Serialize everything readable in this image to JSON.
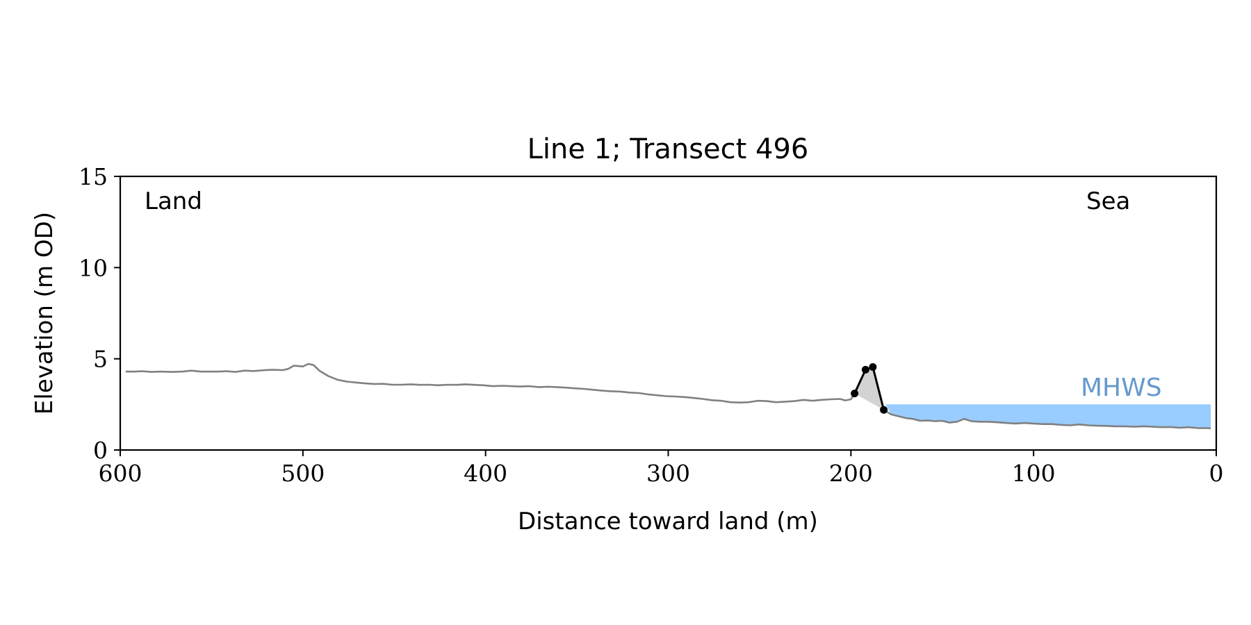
{
  "chart_data": {
    "type": "line",
    "title": "Line 1; Transect 496",
    "xlabel": "Distance toward land (m)",
    "ylabel": "Elevation (m OD)",
    "xlim": [
      600,
      0
    ],
    "ylim": [
      0,
      15
    ],
    "x_ticks": [
      600,
      500,
      400,
      300,
      200,
      100,
      0
    ],
    "y_ticks": [
      0,
      5,
      10,
      15
    ],
    "x_tick_labels": [
      "600",
      "500",
      "400",
      "300",
      "200",
      "100",
      "0"
    ],
    "y_tick_labels": [
      "0",
      "5",
      "10",
      "15"
    ],
    "grid": false,
    "annotations": {
      "left_label": "Land",
      "right_label": "Sea",
      "mhws_label": "MHWS"
    },
    "mhws": {
      "elevation": 2.5,
      "x_from": 181,
      "x_to": 3
    },
    "colors": {
      "profile": "#808080",
      "barrier": "#000000",
      "barrier_fill": "#d3d3d3",
      "mhws_fill": "#99ccff",
      "mhws_text": "#6699cc"
    },
    "series": [
      {
        "points": [
          [
            597,
            4.3
          ],
          [
            592,
            4.3
          ],
          [
            588,
            4.32
          ],
          [
            583,
            4.28
          ],
          [
            578,
            4.3
          ],
          [
            572,
            4.28
          ],
          [
            566,
            4.3
          ],
          [
            561,
            4.35
          ],
          [
            556,
            4.3
          ],
          [
            551,
            4.3
          ],
          [
            546,
            4.3
          ],
          [
            542,
            4.32
          ],
          [
            537,
            4.28
          ],
          [
            532,
            4.35
          ],
          [
            527,
            4.33
          ],
          [
            521,
            4.38
          ],
          [
            516,
            4.4
          ],
          [
            511,
            4.38
          ],
          [
            508,
            4.45
          ],
          [
            505,
            4.62
          ],
          [
            500,
            4.58
          ],
          [
            497,
            4.72
          ],
          [
            494,
            4.65
          ],
          [
            491,
            4.35
          ],
          [
            486,
            4.05
          ],
          [
            481,
            3.85
          ],
          [
            476,
            3.75
          ],
          [
            471,
            3.7
          ],
          [
            466,
            3.65
          ],
          [
            461,
            3.62
          ],
          [
            456,
            3.63
          ],
          [
            451,
            3.58
          ],
          [
            446,
            3.58
          ],
          [
            441,
            3.6
          ],
          [
            436,
            3.57
          ],
          [
            431,
            3.58
          ],
          [
            426,
            3.55
          ],
          [
            421,
            3.58
          ],
          [
            416,
            3.57
          ],
          [
            411,
            3.6
          ],
          [
            406,
            3.57
          ],
          [
            401,
            3.55
          ],
          [
            396,
            3.5
          ],
          [
            391,
            3.52
          ],
          [
            386,
            3.5
          ],
          [
            381,
            3.48
          ],
          [
            376,
            3.5
          ],
          [
            371,
            3.45
          ],
          [
            366,
            3.47
          ],
          [
            361,
            3.45
          ],
          [
            356,
            3.42
          ],
          [
            351,
            3.38
          ],
          [
            346,
            3.35
          ],
          [
            341,
            3.3
          ],
          [
            336,
            3.25
          ],
          [
            331,
            3.22
          ],
          [
            326,
            3.2
          ],
          [
            321,
            3.15
          ],
          [
            316,
            3.12
          ],
          [
            311,
            3.05
          ],
          [
            306,
            3.0
          ],
          [
            301,
            2.95
          ],
          [
            296,
            2.93
          ],
          [
            291,
            2.9
          ],
          [
            286,
            2.85
          ],
          [
            281,
            2.8
          ],
          [
            276,
            2.73
          ],
          [
            271,
            2.7
          ],
          [
            266,
            2.62
          ],
          [
            261,
            2.6
          ],
          [
            256,
            2.62
          ],
          [
            251,
            2.7
          ],
          [
            246,
            2.68
          ],
          [
            241,
            2.62
          ],
          [
            236,
            2.65
          ],
          [
            231,
            2.68
          ],
          [
            226,
            2.75
          ],
          [
            221,
            2.7
          ],
          [
            216,
            2.75
          ],
          [
            211,
            2.78
          ],
          [
            206,
            2.8
          ],
          [
            203,
            2.72
          ],
          [
            200,
            2.78
          ],
          [
            198,
            3.1
          ],
          [
            192,
            4.4
          ],
          [
            188,
            4.55
          ],
          [
            182,
            2.2
          ],
          [
            178,
            1.95
          ],
          [
            174,
            1.85
          ],
          [
            170,
            1.75
          ],
          [
            166,
            1.7
          ],
          [
            162,
            1.6
          ],
          [
            158,
            1.62
          ],
          [
            154,
            1.58
          ],
          [
            150,
            1.6
          ],
          [
            146,
            1.5
          ],
          [
            142,
            1.55
          ],
          [
            138,
            1.7
          ],
          [
            134,
            1.58
          ],
          [
            130,
            1.55
          ],
          [
            125,
            1.55
          ],
          [
            120,
            1.52
          ],
          [
            115,
            1.48
          ],
          [
            110,
            1.45
          ],
          [
            105,
            1.48
          ],
          [
            100,
            1.45
          ],
          [
            95,
            1.42
          ],
          [
            90,
            1.42
          ],
          [
            85,
            1.38
          ],
          [
            80,
            1.35
          ],
          [
            75,
            1.4
          ],
          [
            70,
            1.35
          ],
          [
            65,
            1.33
          ],
          [
            60,
            1.32
          ],
          [
            55,
            1.3
          ],
          [
            50,
            1.3
          ],
          [
            45,
            1.28
          ],
          [
            40,
            1.3
          ],
          [
            35,
            1.28
          ],
          [
            30,
            1.25
          ],
          [
            25,
            1.26
          ],
          [
            20,
            1.22
          ],
          [
            15,
            1.25
          ],
          [
            10,
            1.2
          ],
          [
            5,
            1.2
          ],
          [
            3,
            1.18
          ]
        ]
      },
      {
        "points": [
          [
            198,
            3.1
          ],
          [
            192,
            4.4
          ],
          [
            188,
            4.55
          ],
          [
            182,
            2.2
          ]
        ]
      }
    ]
  }
}
